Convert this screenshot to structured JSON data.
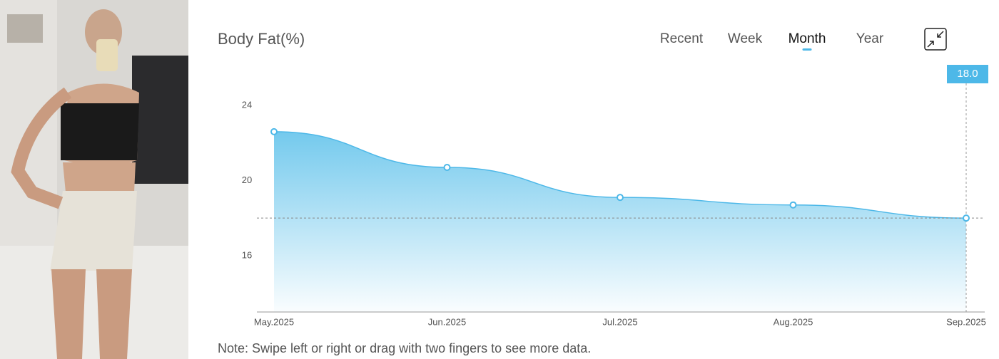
{
  "photo": {},
  "tabs": [
    "Recent",
    "Week",
    "Month",
    "Year"
  ],
  "selected_tab": "Month",
  "chart_data": {
    "type": "area",
    "title": "Body Fat(%)",
    "categories": [
      "May.2025",
      "Jun.2025",
      "Jul.2025",
      "Aug.2025",
      "Sep.2025"
    ],
    "values": [
      22.6,
      20.7,
      19.1,
      18.7,
      18.0
    ],
    "value_labels": [
      null,
      null,
      null,
      null,
      "18.0"
    ],
    "color": "#4db8e8",
    "ylim": [
      13,
      25
    ],
    "yticks": [
      16,
      20,
      24
    ]
  },
  "note": "Note: Swipe left or right or drag with two fingers to see more data."
}
